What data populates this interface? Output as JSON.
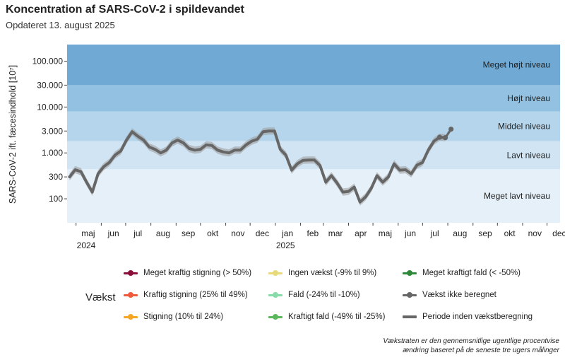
{
  "title": "Koncentration af SARS-CoV-2 i spildevandet",
  "subtitle": "Opdateret 13. august 2025",
  "chart_data": {
    "type": "line",
    "ylabel": "SARS-CoV-2 ift. fæcesindhold [10⁷]",
    "yscale": "log",
    "ylim": [
      30,
      230000
    ],
    "yticks": [
      {
        "value": 100,
        "label": "100"
      },
      {
        "value": 300,
        "label": "300"
      },
      {
        "value": 1000,
        "label": "1.000"
      },
      {
        "value": 3000,
        "label": "3.000"
      },
      {
        "value": 10000,
        "label": "10.000"
      },
      {
        "value": 30000,
        "label": "30.000"
      },
      {
        "value": 100000,
        "label": "100.000"
      }
    ],
    "xlim": [
      "2024-04-20",
      "2025-12-17"
    ],
    "xticks": [
      {
        "date": "2024-05-01",
        "label": "maj",
        "year": "2024"
      },
      {
        "date": "2024-06-01",
        "label": "jun"
      },
      {
        "date": "2024-07-01",
        "label": "jul"
      },
      {
        "date": "2024-08-01",
        "label": "aug"
      },
      {
        "date": "2024-09-01",
        "label": "sep"
      },
      {
        "date": "2024-10-01",
        "label": "okt"
      },
      {
        "date": "2024-11-01",
        "label": "nov"
      },
      {
        "date": "2024-12-01",
        "label": "dec"
      },
      {
        "date": "2025-01-01",
        "label": "jan",
        "year": "2025"
      },
      {
        "date": "2025-02-01",
        "label": "feb"
      },
      {
        "date": "2025-03-01",
        "label": "mar"
      },
      {
        "date": "2025-04-01",
        "label": "apr"
      },
      {
        "date": "2025-05-01",
        "label": "maj"
      },
      {
        "date": "2025-06-01",
        "label": "jun"
      },
      {
        "date": "2025-07-01",
        "label": "jul"
      },
      {
        "date": "2025-08-01",
        "label": "aug"
      },
      {
        "date": "2025-09-01",
        "label": "sep"
      },
      {
        "date": "2025-10-01",
        "label": "okt"
      },
      {
        "date": "2025-11-01",
        "label": "nov"
      },
      {
        "date": "2025-12-01",
        "label": "dec"
      }
    ],
    "bands": [
      {
        "label": "Meget højt niveau",
        "from": 30000,
        "to": 230000,
        "color": "#6fa9d4"
      },
      {
        "label": "Højt niveau",
        "from": 8000,
        "to": 30000,
        "color": "#93c1e1"
      },
      {
        "label": "Middel niveau",
        "from": 1800,
        "to": 8000,
        "color": "#b5d5ec"
      },
      {
        "label": "Lavt niveau",
        "from": 440,
        "to": 1800,
        "color": "#d1e4f3"
      },
      {
        "label": "Meget lavt niveau",
        "from": 30,
        "to": 440,
        "color": "#e6f0f9"
      }
    ],
    "series": [
      {
        "growth": "Periode inden vækstberegning",
        "color": "#666666",
        "points": [
          [
            "2024-04-23",
            300
          ],
          [
            "2024-04-30",
            430
          ],
          [
            "2024-05-07",
            390
          ],
          [
            "2024-05-14",
            230
          ],
          [
            "2024-05-21",
            140
          ],
          [
            "2024-05-28",
            350
          ],
          [
            "2024-06-04",
            500
          ],
          [
            "2024-06-11",
            620
          ],
          [
            "2024-06-18",
            900
          ],
          [
            "2024-06-25",
            1100
          ],
          [
            "2024-07-02",
            1900
          ],
          [
            "2024-07-09",
            2900
          ],
          [
            "2024-07-16",
            2300
          ],
          [
            "2024-07-23",
            1900
          ],
          [
            "2024-07-30",
            1350
          ],
          [
            "2024-08-06",
            1200
          ],
          [
            "2024-08-13",
            1000
          ],
          [
            "2024-08-20",
            1150
          ],
          [
            "2024-08-27",
            1650
          ],
          [
            "2024-09-03",
            1900
          ],
          [
            "2024-09-10",
            1650
          ],
          [
            "2024-09-17",
            1250
          ],
          [
            "2024-09-24",
            1150
          ],
          [
            "2024-10-01",
            1200
          ],
          [
            "2024-10-08",
            1500
          ],
          [
            "2024-10-15",
            1450
          ],
          [
            "2024-10-22",
            1150
          ],
          [
            "2024-10-29",
            1050
          ],
          [
            "2024-11-05",
            1000
          ],
          [
            "2024-11-12",
            1150
          ],
          [
            "2024-11-19",
            1150
          ],
          [
            "2024-11-26",
            1500
          ],
          [
            "2024-12-03",
            1800
          ],
          [
            "2024-12-10",
            2000
          ],
          [
            "2024-12-17",
            2900
          ],
          [
            "2024-12-24",
            3000
          ],
          [
            "2024-12-31",
            3000
          ],
          [
            "2025-01-07",
            1200
          ],
          [
            "2025-01-14",
            900
          ],
          [
            "2025-01-21",
            420
          ],
          [
            "2025-01-28",
            580
          ],
          [
            "2025-02-04",
            690
          ],
          [
            "2025-02-11",
            700
          ],
          [
            "2025-02-18",
            700
          ],
          [
            "2025-02-25",
            530
          ],
          [
            "2025-03-04",
            230
          ],
          [
            "2025-03-11",
            320
          ],
          [
            "2025-03-18",
            220
          ],
          [
            "2025-03-25",
            140
          ],
          [
            "2025-04-01",
            145
          ],
          [
            "2025-04-08",
            180
          ],
          [
            "2025-04-15",
            85
          ],
          [
            "2025-04-22",
            110
          ],
          [
            "2025-04-29",
            170
          ],
          [
            "2025-05-06",
            320
          ],
          [
            "2025-05-13",
            230
          ],
          [
            "2025-05-20",
            300
          ],
          [
            "2025-05-27",
            580
          ],
          [
            "2025-06-03",
            420
          ],
          [
            "2025-06-10",
            430
          ],
          [
            "2025-06-17",
            350
          ],
          [
            "2025-06-24",
            540
          ],
          [
            "2025-07-01",
            620
          ],
          [
            "2025-07-08",
            1150
          ],
          [
            "2025-07-15",
            1800
          ],
          [
            "2025-07-22",
            2200
          ],
          [
            "2025-07-29",
            2150
          ]
        ]
      },
      {
        "growth": "Vækst ikke beregnet",
        "color": "#666666",
        "points": [
          [
            "2025-07-22",
            2200
          ],
          [
            "2025-07-29",
            2150
          ],
          [
            "2025-08-05",
            3300
          ]
        ]
      }
    ],
    "legend_title": "Vækst",
    "legend": [
      {
        "label": "Meget kraftig stigning (> 50%)",
        "color": "#8b0d3a",
        "marker": "dot"
      },
      {
        "label": "Ingen vækst (-9% til 9%)",
        "color": "#e8d97a",
        "marker": "dot"
      },
      {
        "label": "Meget kraftigt fald (< -50%)",
        "color": "#2e8a3a",
        "marker": "dot"
      },
      {
        "label": "Kraftig stigning (25% til 49%)",
        "color": "#ef5a3c",
        "marker": "dot"
      },
      {
        "label": "Fald (-24% til -10%)",
        "color": "#87dba8",
        "marker": "dot"
      },
      {
        "label": "Vækst ikke beregnet",
        "color": "#666666",
        "marker": "dot"
      },
      {
        "label": "Stigning (10% til 24%)",
        "color": "#f5a623",
        "marker": "dot"
      },
      {
        "label": "Kraftigt fald (-49% til -25%)",
        "color": "#5cb85c",
        "marker": "dot"
      },
      {
        "label": "Periode inden vækstberegning",
        "color": "#666666",
        "marker": "line"
      }
    ]
  },
  "footnote": {
    "line1": "Vækstraten er den gennemsnitlige ugentlige procentvise",
    "line2": "ændring baseret på de seneste tre ugers målinger"
  }
}
